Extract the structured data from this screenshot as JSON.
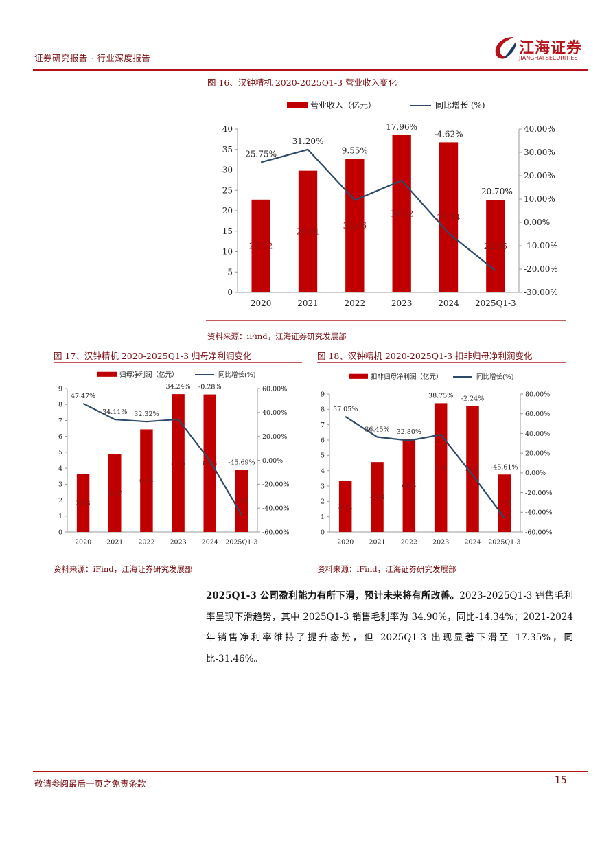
{
  "header": {
    "left_text": "证券研究报告 · 行业深度报告",
    "logo_cn": "江海证券",
    "logo_en": "JIANGHAI SECURITIES"
  },
  "fig16": {
    "title": "图 16、汉钟精机 2020-2025Q1-3 营业收入变化",
    "source": "资料来源：iFind，江海证券研究发展部"
  },
  "fig17": {
    "title": "图 17、汉钟精机 2020-2025Q1-3 归母净利润变化",
    "source": "资料来源：iFind，江海证券研究发展部"
  },
  "fig18": {
    "title": "图 18、汉钟精机 2020-2025Q1-3 扣非归母净利润变化",
    "source": "资料来源：iFind，江海证券研究发展部"
  },
  "paragraph": {
    "bold": "2025Q1-3 公司盈利能力有所下滑，预计未来将有所改善。",
    "text": "2023-2025Q1-3 销售毛利率呈现下滑趋势，其中 2025Q1-3 销售毛利率为 34.90%，同比-14.34%；2021-2024 年销售净利率维持了提升态势，但 2025Q1-3 出现显著下滑至 17.35%，同比-31.46%。"
  },
  "footer": {
    "disclaimer": "敬请参阅最后一页之免责条款",
    "page": "15"
  },
  "colors": {
    "bar": "#c00000",
    "line": "#2e4a6b",
    "brand": "#b5121b"
  },
  "chart_data": [
    {
      "type": "bar",
      "categories": [
        "2020",
        "2021",
        "2022",
        "2023",
        "2024",
        "2025Q1-3"
      ],
      "series": [
        {
          "name": "营业收入（亿元）",
          "type": "bar",
          "axis": "left",
          "values": [
            22.72,
            29.81,
            32.66,
            38.52,
            36.74,
            22.65
          ]
        },
        {
          "name": "同比增长 (%)",
          "type": "line",
          "axis": "right",
          "values": [
            25.75,
            31.2,
            9.55,
            17.96,
            -4.62,
            -20.7
          ]
        }
      ],
      "bar_labels": [
        "22.72",
        "29.81",
        "32.66",
        "38.52",
        "36.74",
        "22.65"
      ],
      "line_labels": [
        "25.75%",
        "31.20%",
        "9.55%",
        "17.96%",
        "-4.62%",
        "-20.70%"
      ],
      "ylim": [
        0,
        40
      ],
      "yticks": [
        "0",
        "5",
        "10",
        "15",
        "20",
        "25",
        "30",
        "35",
        "40"
      ],
      "y2lim": [
        -30,
        40
      ],
      "y2ticks": [
        "-30.00%",
        "-20.00%",
        "-10.00%",
        "0.00%",
        "10.00%",
        "20.00%",
        "30.00%",
        "40.00%"
      ],
      "legend": "top"
    },
    {
      "type": "bar",
      "categories": [
        "2020",
        "2021",
        "2022",
        "2023",
        "2024",
        "2025Q1-3"
      ],
      "series": [
        {
          "name": "归母净利润（亿元）",
          "type": "bar",
          "axis": "left",
          "values": [
            3.63,
            4.87,
            6.44,
            8.65,
            8.63,
            3.89
          ]
        },
        {
          "name": "同比增长(%)",
          "type": "line",
          "axis": "right",
          "values": [
            47.47,
            34.11,
            32.32,
            34.24,
            -0.28,
            -45.69
          ]
        }
      ],
      "bar_labels": [
        "3.63",
        "4.87",
        "6.44",
        "8.65",
        "8.63",
        "3.89"
      ],
      "line_labels": [
        "47.47%",
        "34.11%",
        "32.32%",
        "34.24%",
        "-0.28%",
        "-45.69%"
      ],
      "ylim": [
        0,
        9
      ],
      "yticks": [
        "0",
        "1",
        "2",
        "3",
        "4",
        "5",
        "6",
        "7",
        "8",
        "9"
      ],
      "y2lim": [
        -60,
        60
      ],
      "y2ticks": [
        "-60.00%",
        "-40.00%",
        "-20.00%",
        "0.00%",
        "20.00%",
        "40.00%",
        "60.00%"
      ],
      "legend": "top"
    },
    {
      "type": "bar",
      "categories": [
        "2020",
        "2021",
        "2022",
        "2023",
        "2024",
        "2025Q1-3"
      ],
      "series": [
        {
          "name": "扣非归母净利润（亿元）",
          "type": "bar",
          "axis": "left",
          "values": [
            3.34,
            4.56,
            6.05,
            8.4,
            8.21,
            3.75
          ]
        },
        {
          "name": "同比增长(%)",
          "type": "line",
          "axis": "right",
          "values": [
            57.05,
            36.45,
            32.8,
            38.75,
            -2.24,
            -45.61
          ]
        }
      ],
      "bar_labels": [
        "3.34",
        "4.56",
        "6.05",
        "8.4",
        "8.21",
        "3.75"
      ],
      "line_labels": [
        "57.05%",
        "36.45%",
        "32.80%",
        "38.75%",
        "-2.24%",
        "-45.61%"
      ],
      "ylim": [
        0,
        9
      ],
      "yticks": [
        "0",
        "1",
        "2",
        "3",
        "4",
        "5",
        "6",
        "7",
        "8",
        "9"
      ],
      "y2lim": [
        -60,
        80
      ],
      "y2ticks": [
        "-60.00%",
        "-40.00%",
        "-20.00%",
        "0.00%",
        "20.00%",
        "40.00%",
        "60.00%",
        "80.00%"
      ],
      "legend": "top"
    }
  ]
}
